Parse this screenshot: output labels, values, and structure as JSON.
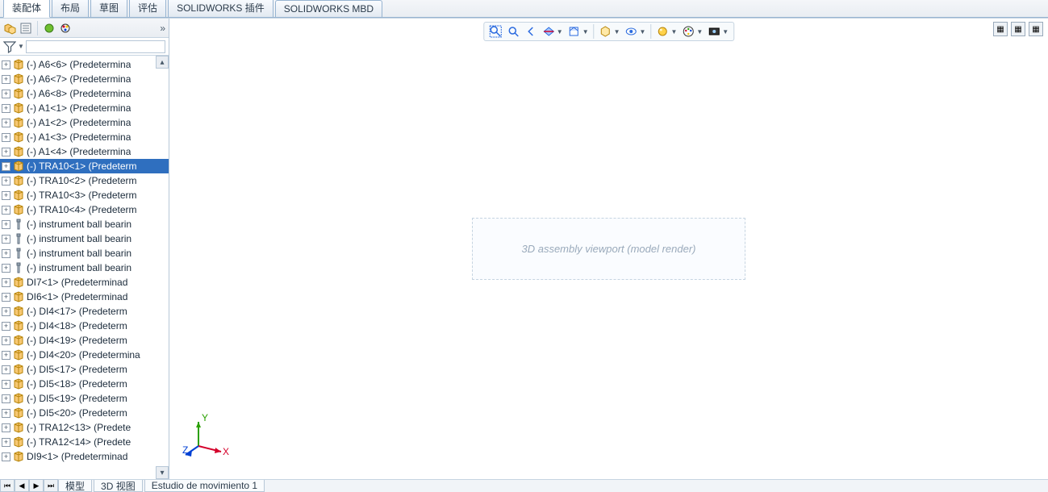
{
  "colors": {
    "selection_bg": "#2f6fbf",
    "selection_fg": "#ffffff",
    "tab_border": "#97b4d1",
    "panel_bg_top": "#f4f6f9",
    "panel_bg_bot": "#e9edf2",
    "divider": "#c6d4e1",
    "text": "#1a2a3a",
    "viewport_bg": "#ffffff",
    "triad_x": "#d4002a",
    "triad_y": "#2aa000",
    "triad_z": "#0040d4"
  },
  "tabs": {
    "items": [
      {
        "label": "装配体",
        "active": true
      },
      {
        "label": "布局",
        "active": false
      },
      {
        "label": "草图",
        "active": false
      },
      {
        "label": "评估",
        "active": false
      },
      {
        "label": "SOLIDWORKS 插件",
        "active": false
      },
      {
        "label": "SOLIDWORKS MBD",
        "active": false
      }
    ]
  },
  "sidebar": {
    "toolbar_icons": [
      "assembly-icon",
      "feature-mgr-icon",
      "display-mgr-icon",
      "appearance-mgr-icon"
    ],
    "filter_icon": "filter-icon",
    "filter_placeholder": ""
  },
  "tree": [
    {
      "icon": "part",
      "label": "(-) A6<6> (Predetermina"
    },
    {
      "icon": "part",
      "label": "(-) A6<7> (Predetermina"
    },
    {
      "icon": "part",
      "label": "(-) A6<8> (Predetermina"
    },
    {
      "icon": "part",
      "label": "(-) A1<1> (Predetermina"
    },
    {
      "icon": "part",
      "label": "(-) A1<2> (Predetermina"
    },
    {
      "icon": "part",
      "label": "(-) A1<3> (Predetermina"
    },
    {
      "icon": "part",
      "label": "(-) A1<4> (Predetermina"
    },
    {
      "icon": "part",
      "label": "(-) TRA10<1> (Predeterm",
      "selected": true
    },
    {
      "icon": "part",
      "label": "(-) TRA10<2> (Predeterm"
    },
    {
      "icon": "part",
      "label": "(-) TRA10<3> (Predeterm"
    },
    {
      "icon": "part",
      "label": "(-) TRA10<4> (Predeterm"
    },
    {
      "icon": "fastener",
      "label": "(-) instrument ball bearin"
    },
    {
      "icon": "fastener",
      "label": "(-) instrument ball bearin"
    },
    {
      "icon": "fastener",
      "label": "(-) instrument ball bearin"
    },
    {
      "icon": "fastener",
      "label": "(-) instrument ball bearin"
    },
    {
      "icon": "part",
      "label": "DI7<1> (Predeterminad"
    },
    {
      "icon": "part",
      "label": "DI6<1> (Predeterminad"
    },
    {
      "icon": "part",
      "label": "(-) DI4<17> (Predeterm"
    },
    {
      "icon": "part",
      "label": "(-) DI4<18> (Predeterm"
    },
    {
      "icon": "part",
      "label": "(-) DI4<19> (Predeterm"
    },
    {
      "icon": "part",
      "label": "(-) DI4<20> (Predetermina"
    },
    {
      "icon": "part",
      "label": "(-) DI5<17> (Predeterm"
    },
    {
      "icon": "part",
      "label": "(-) DI5<18> (Predeterm"
    },
    {
      "icon": "part",
      "label": "(-) DI5<19> (Predeterm"
    },
    {
      "icon": "part",
      "label": "(-) DI5<20> (Predeterm"
    },
    {
      "icon": "part",
      "label": "(-) TRA12<13> (Predete"
    },
    {
      "icon": "part",
      "label": "(-) TRA12<14> (Predete"
    },
    {
      "icon": "part",
      "label": "DI9<1> (Predeterminad"
    }
  ],
  "viewport_toolbar": [
    {
      "name": "zoom-fit-icon",
      "glyph": "zoomfit"
    },
    {
      "name": "zoom-area-icon",
      "glyph": "zoomarea"
    },
    {
      "name": "prev-view-icon",
      "glyph": "prev"
    },
    {
      "name": "section-icon",
      "glyph": "section",
      "dd": true
    },
    {
      "name": "view-orient-icon",
      "glyph": "orient",
      "dd": true
    },
    {
      "sep": true
    },
    {
      "name": "display-style-icon",
      "glyph": "dispstyle",
      "dd": true
    },
    {
      "name": "hide-show-icon",
      "glyph": "hideshow",
      "dd": true
    },
    {
      "sep": true
    },
    {
      "name": "scene-icon",
      "glyph": "scene",
      "dd": true
    },
    {
      "name": "appearance-icon",
      "glyph": "appear",
      "dd": true
    },
    {
      "name": "render-icon",
      "glyph": "render",
      "dd": true
    }
  ],
  "viewport_right_icons": [
    "panel-a-icon",
    "panel-b-icon",
    "panel-c-icon"
  ],
  "canvas_note": "3D assembly viewport (model render)",
  "triad": {
    "x": "X",
    "y": "Y",
    "z": "Z"
  },
  "bottom_tabs": [
    {
      "label": "模型"
    },
    {
      "label": "3D 视图"
    },
    {
      "label": "Estudio de movimiento 1"
    }
  ]
}
